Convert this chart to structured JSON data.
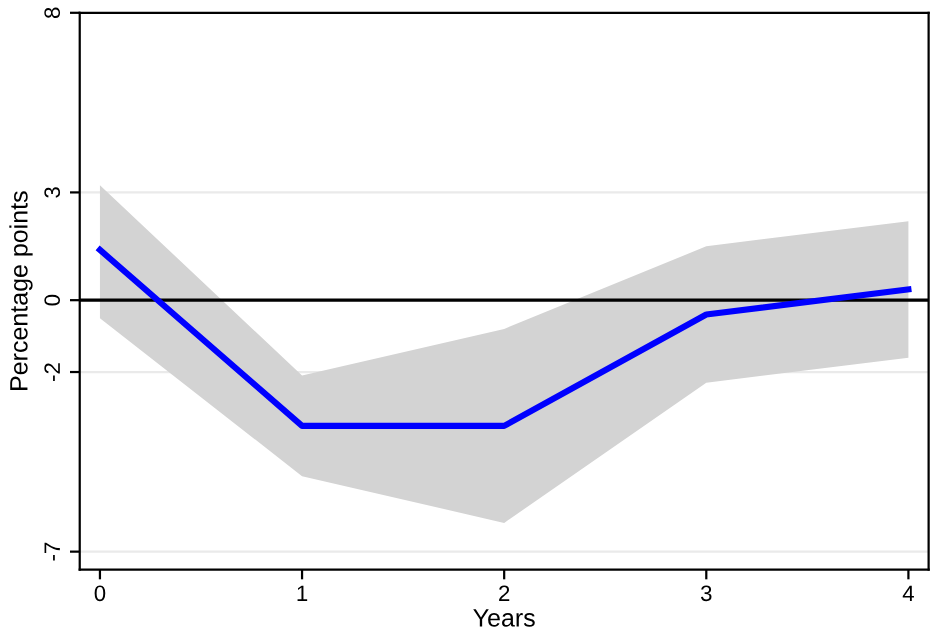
{
  "chart_data": {
    "type": "line",
    "xlabel": "Years",
    "ylabel": "Percentage points",
    "x": [
      0,
      1,
      2,
      3,
      4
    ],
    "series": [
      {
        "color": "#0000ff",
        "values": [
          1.4,
          -3.5,
          -3.5,
          -0.4,
          0.3
        ],
        "lower": [
          -0.5,
          -4.9,
          -6.2,
          -2.3,
          -1.6
        ],
        "upper": [
          3.2,
          -2.1,
          -0.8,
          1.5,
          2.2
        ]
      }
    ],
    "xlim": [
      -0.1,
      4.1
    ],
    "ylim": [
      -7.5,
      8
    ],
    "xticks": [
      0,
      1,
      2,
      3,
      4
    ],
    "yticks": [
      -7,
      -2,
      0,
      3,
      8
    ],
    "ref_lines": [
      {
        "axis": "y",
        "value": 0,
        "color": "#000000"
      }
    ],
    "grid": "y",
    "legend": false,
    "marker": "none",
    "line_style": "solid"
  }
}
